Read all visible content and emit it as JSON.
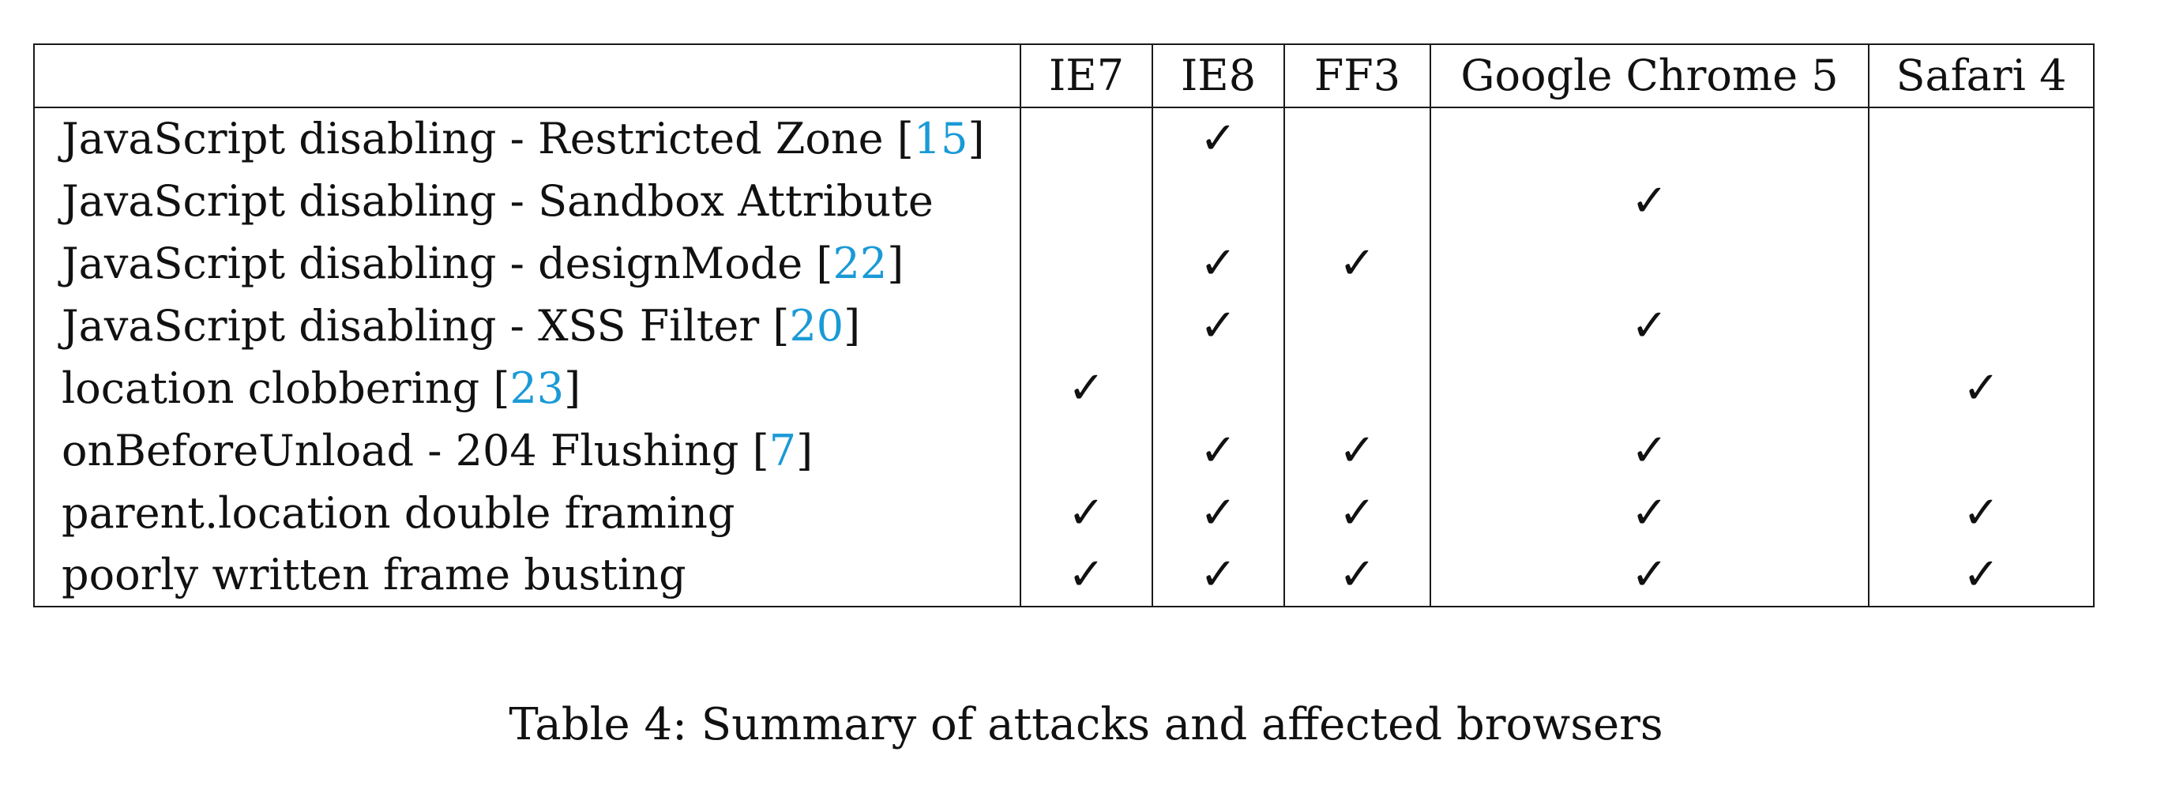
{
  "table": {
    "columns": [
      "",
      "IE7",
      "IE8",
      "FF3",
      "Google Chrome 5",
      "Safari 4"
    ],
    "check_glyph": "✓",
    "rows": [
      {
        "attack": "JavaScript disabling - Restricted Zone ",
        "ref": "15",
        "ie7": false,
        "ie8": true,
        "ff3": false,
        "chrome5": false,
        "safari4": false
      },
      {
        "attack": "JavaScript disabling - Sandbox Attribute",
        "ref": "",
        "ie7": false,
        "ie8": false,
        "ff3": false,
        "chrome5": true,
        "safari4": false
      },
      {
        "attack": "JavaScript disabling - designMode ",
        "ref": "22",
        "ie7": false,
        "ie8": true,
        "ff3": true,
        "chrome5": false,
        "safari4": false
      },
      {
        "attack": "JavaScript disabling - XSS Filter ",
        "ref": "20",
        "ie7": false,
        "ie8": true,
        "ff3": false,
        "chrome5": true,
        "safari4": false
      },
      {
        "attack": "location clobbering ",
        "ref": "23",
        "ie7": true,
        "ie8": false,
        "ff3": false,
        "chrome5": false,
        "safari4": true
      },
      {
        "attack": "onBeforeUnload - 204 Flushing ",
        "ref": "7",
        "ie7": false,
        "ie8": true,
        "ff3": true,
        "chrome5": true,
        "safari4": false
      },
      {
        "attack": "parent.location double framing",
        "ref": "",
        "ie7": true,
        "ie8": true,
        "ff3": true,
        "chrome5": true,
        "safari4": true
      },
      {
        "attack": "poorly written frame busting",
        "ref": "",
        "ie7": true,
        "ie8": true,
        "ff3": true,
        "chrome5": true,
        "safari4": true
      }
    ]
  },
  "caption": "Table 4: Summary of attacks and affected browsers",
  "colors": {
    "text": "#111111",
    "rule": "#1a1a1a",
    "citation_link": "#1a9ad6"
  }
}
